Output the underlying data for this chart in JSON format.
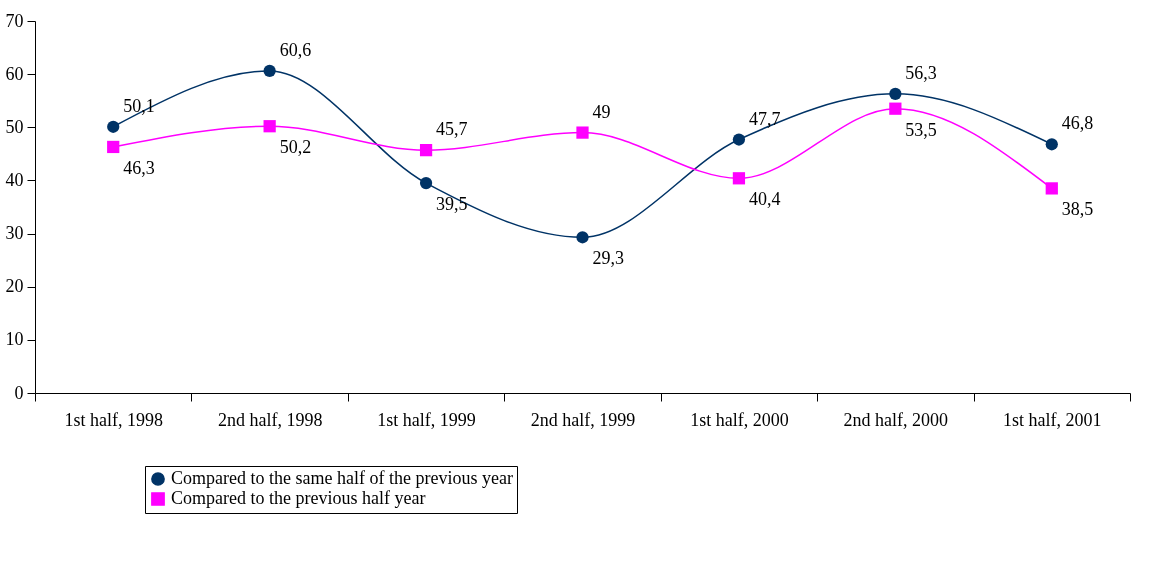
{
  "chart_data": {
    "type": "line",
    "categories": [
      "1st half, 1998",
      "2nd half, 1998",
      "1st half, 1999",
      "2nd half, 1999",
      "1st half, 2000",
      "2nd half, 2000",
      "1st half, 2001"
    ],
    "series": [
      {
        "name": "Compared to the same half of the previous year",
        "color": "#003366",
        "marker": "circle",
        "values": [
          50.1,
          60.6,
          39.5,
          29.3,
          47.7,
          56.3,
          46.8
        ],
        "value_labels": [
          "50,1",
          "60,6",
          "39,5",
          "29,3",
          "47,7",
          "56,3",
          "46,8"
        ]
      },
      {
        "name": "Compared to the previous half year",
        "color": "#ff00ff",
        "marker": "square",
        "values": [
          46.3,
          50.2,
          45.7,
          49,
          40.4,
          53.5,
          38.5
        ],
        "value_labels": [
          "46,3",
          "50,2",
          "45,7",
          "49",
          "40,4",
          "53,5",
          "38,5"
        ]
      }
    ],
    "ylim": [
      0,
      70
    ],
    "yticks": [
      0,
      10,
      20,
      30,
      40,
      50,
      60,
      70
    ],
    "grid": false,
    "legend": "bottom",
    "line_style": "solid"
  }
}
